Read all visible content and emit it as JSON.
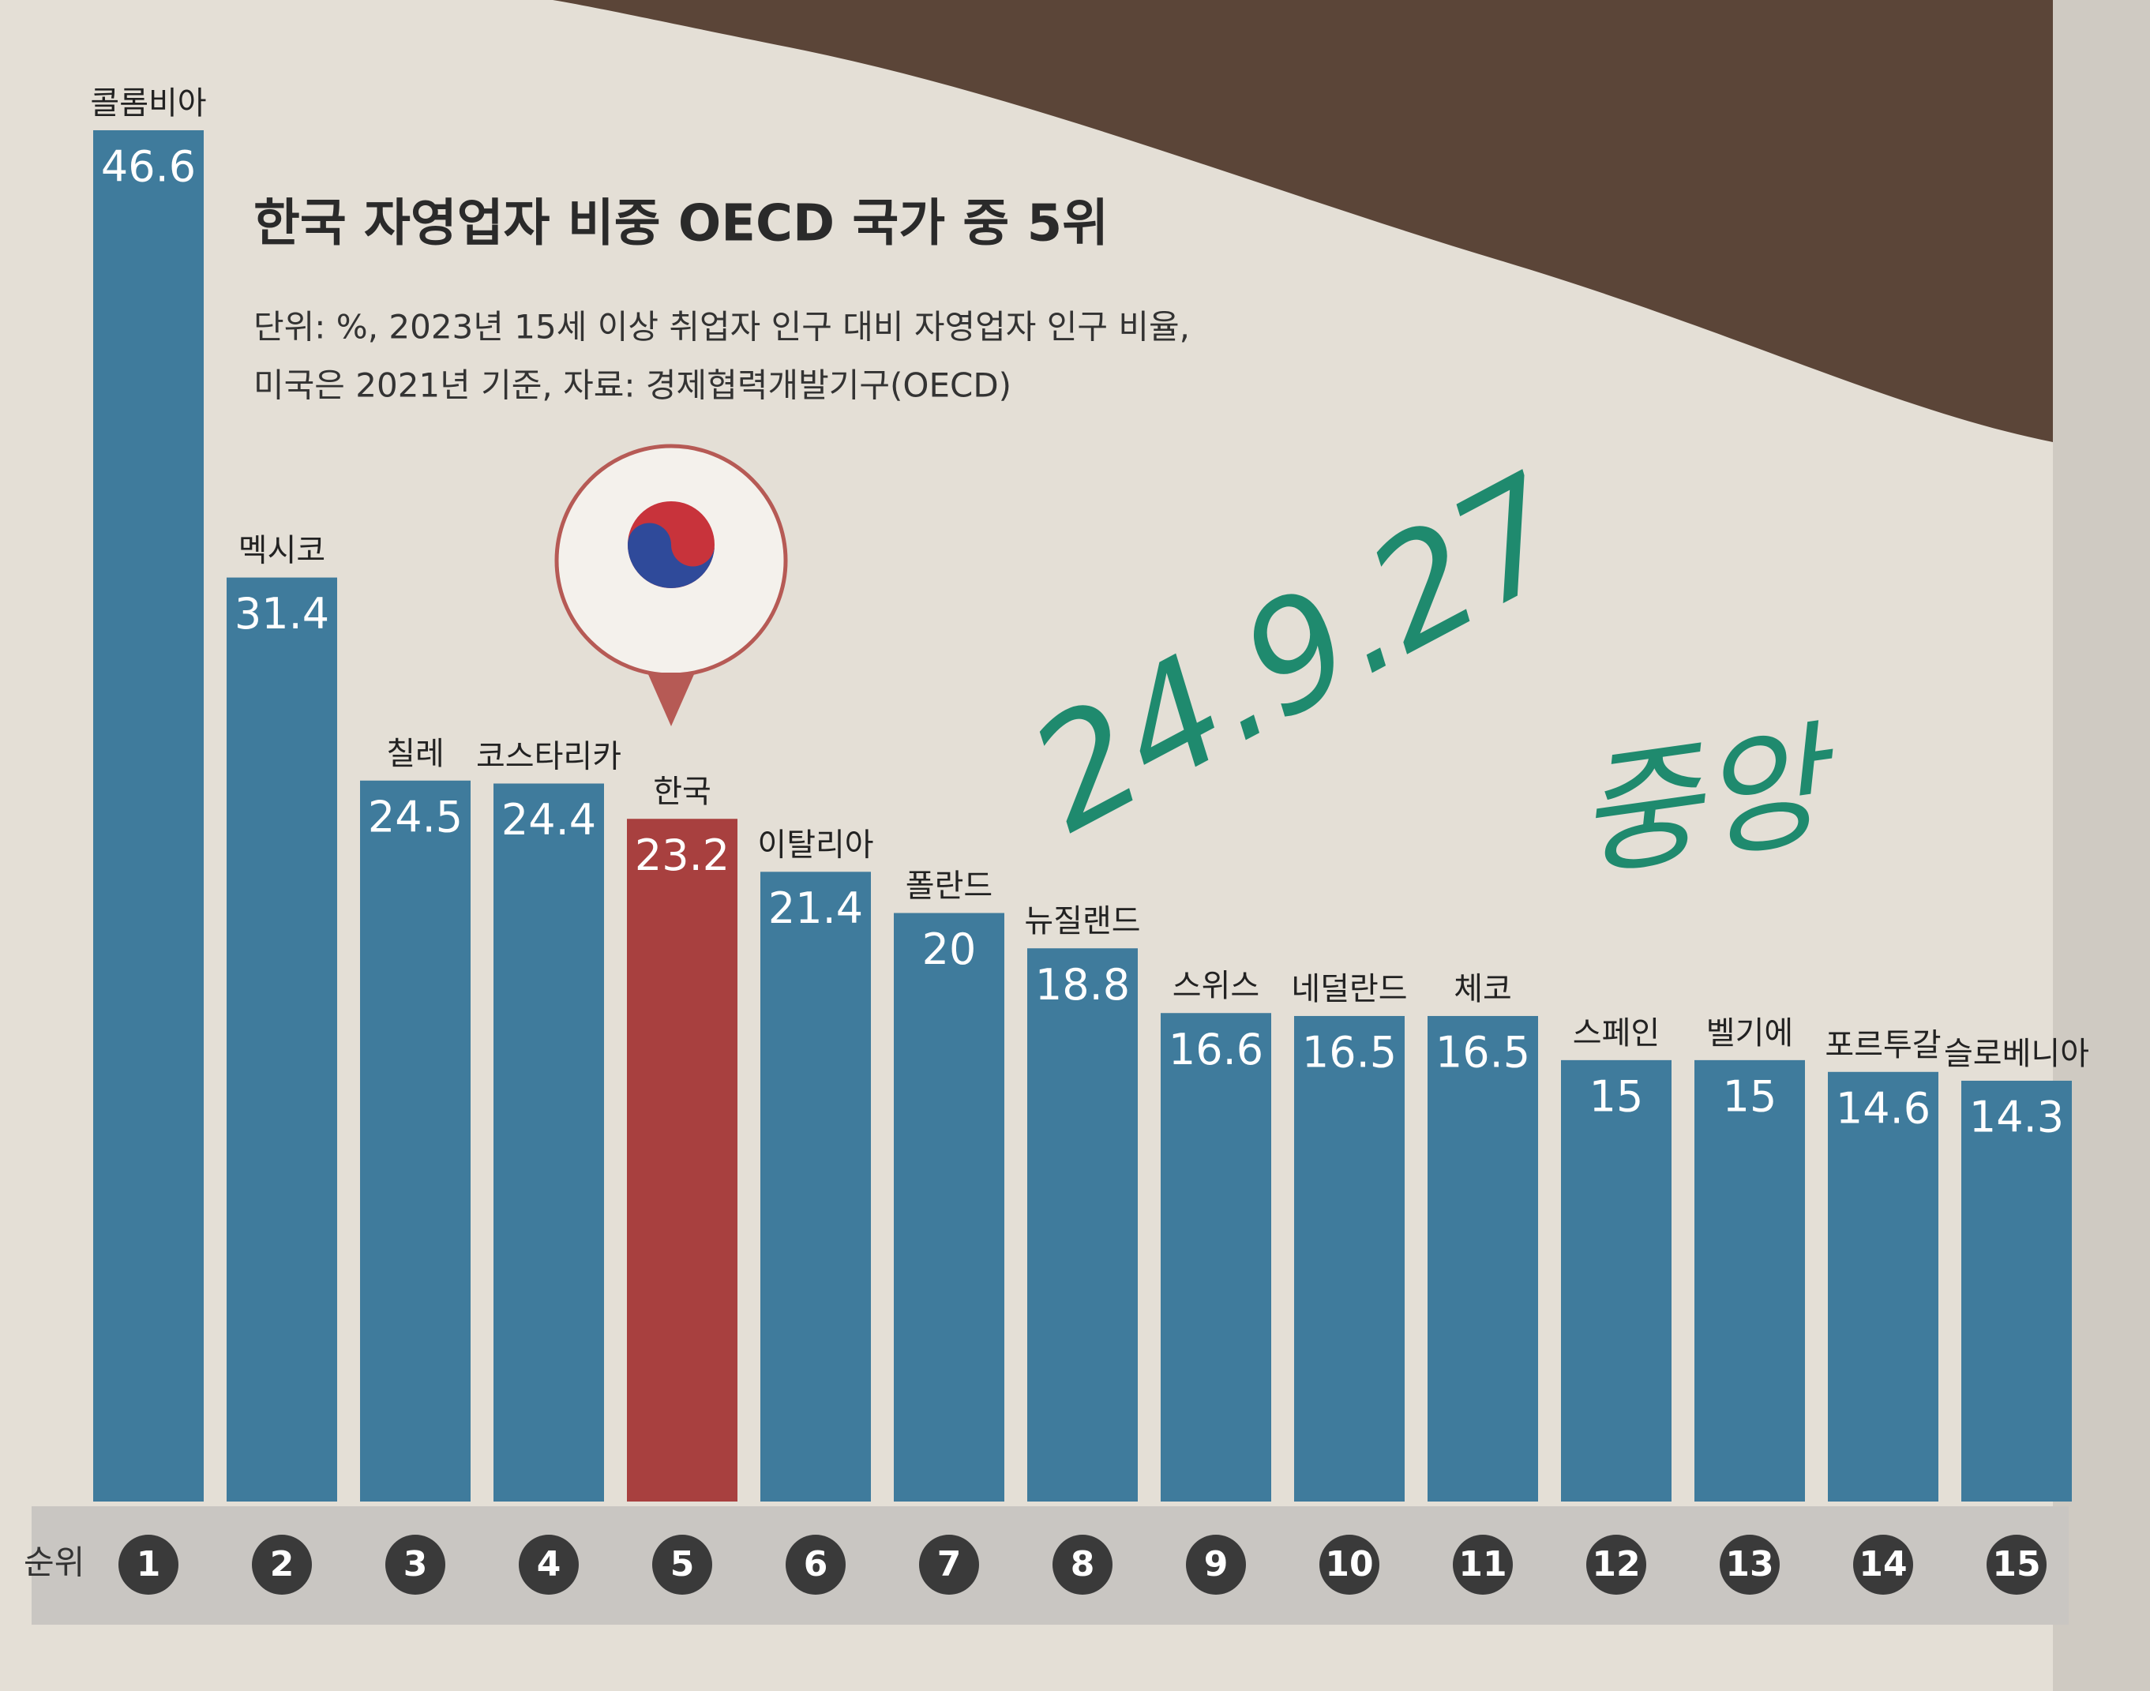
{
  "chart_data": {
    "type": "bar",
    "title": "한국 자영업자 비중 OECD 국가 중 5위",
    "subtitle": [
      "단위: %, 2023년 15세 이상 취업자 인구 대비 자영업자 인구 비율,",
      "미국은 2021년 기준, 자료: 경제협력개발기구(OECD)"
    ],
    "categories": [
      "콜롬비아",
      "멕시코",
      "칠레",
      "코스타리카",
      "한국",
      "이탈리아",
      "폴란드",
      "뉴질랜드",
      "스위스",
      "네덜란드",
      "체코",
      "스페인",
      "벨기에",
      "포르투갈",
      "슬로베니아"
    ],
    "values": [
      46.6,
      31.4,
      24.5,
      24.4,
      23.2,
      21.4,
      20,
      18.8,
      16.6,
      16.5,
      16.5,
      15,
      15,
      14.6,
      14.3
    ],
    "colors": [
      "#3f7b9c",
      "#3f7b9c",
      "#3f7b9c",
      "#3f7b9c",
      "#a8403f",
      "#3f7b9c",
      "#3f7b9c",
      "#3f7b9c",
      "#3f7b9c",
      "#3f7b9c",
      "#3f7b9c",
      "#3f7b9c",
      "#3f7b9c",
      "#3f7b9c",
      "#3f7b9c"
    ],
    "rank_label": "순위",
    "ranks": [
      1,
      2,
      3,
      4,
      5,
      6,
      7,
      8,
      9,
      10,
      11,
      12,
      13,
      14,
      15
    ],
    "handwritten_note": [
      "24.9.27",
      "중앙"
    ]
  }
}
